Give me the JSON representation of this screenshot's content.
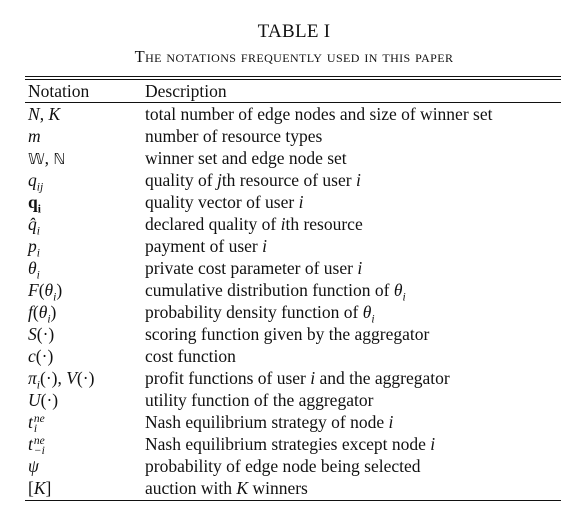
{
  "caption": {
    "label": "TABLE I",
    "title": "The notations frequently used in this paper"
  },
  "table": {
    "headers": [
      "Notation",
      "Description"
    ],
    "rows": [
      {
        "notation": "N, K",
        "description": "total number of edge nodes and size of winner set"
      },
      {
        "notation": "m",
        "description": "number of resource types"
      },
      {
        "notation": "𝕎, ℕ",
        "description": "winner set and edge node set"
      },
      {
        "notation": "q_ij",
        "description": "quality of jth resource of user i"
      },
      {
        "notation": "q_i",
        "description": "quality vector of user i"
      },
      {
        "notation": "q̂_i",
        "description": "declared quality of ith resource"
      },
      {
        "notation": "p_i",
        "description": "payment of user i"
      },
      {
        "notation": "θ_i",
        "description": "private cost parameter of user i"
      },
      {
        "notation": "F(θ_i)",
        "description": "cumulative distribution function of θ_i"
      },
      {
        "notation": "f(θ_i)",
        "description": "probability density function of θ_i"
      },
      {
        "notation": "S(·)",
        "description": "scoring function given by the aggregator"
      },
      {
        "notation": "c(·)",
        "description": "cost function"
      },
      {
        "notation": "π_i(·), V(·)",
        "description": "profit functions of user i and the aggregator"
      },
      {
        "notation": "U(·)",
        "description": "utility function of the aggregator"
      },
      {
        "notation": "t_i^ne",
        "description": "Nash equilibrium strategy of node i"
      },
      {
        "notation": "t_−i^ne",
        "description": "Nash equilibrium strategies except node i"
      },
      {
        "notation": "ψ",
        "description": "probability of edge node being selected"
      },
      {
        "notation": "[K]",
        "description": "auction with K winners"
      }
    ]
  },
  "math": {
    "q": "q",
    "i": "i",
    "j": "j",
    "ij": "ij",
    "ne": "ne",
    "minus_i": "−i",
    "theta": "θ",
    "pi": "π",
    "psi": "ψ",
    "dot": "·",
    "th": "th",
    "bb_W": "𝕎",
    "bb_N": "ℕ",
    "N": "N",
    "K": "K",
    "m": "m",
    "p": "p",
    "t": "t",
    "F": "F",
    "f": "f",
    "S": "S",
    "c": "c",
    "V": "V",
    "U": "U",
    "comma": ", ",
    "lp": "(",
    "rp": ")",
    "lb": "[",
    "rb": "]"
  },
  "desc_parts": {
    "d4a": "quality of ",
    "d4b": "th resource of user ",
    "d5a": "quality vector of user ",
    "d6a": "declared quality of ",
    "d6b": "th resource",
    "d7a": "payment of user ",
    "d8a": "private cost parameter of user ",
    "d9a": "cumulative distribution function of ",
    "d10a": "probability density function of ",
    "d13a": "profit functions of user ",
    "d13b": " and the aggregator",
    "d15a": "Nash equilibrium strategy of node ",
    "d16a": "Nash equilibrium strategies except node ",
    "d18a": "auction with ",
    "d18b": " winners"
  }
}
